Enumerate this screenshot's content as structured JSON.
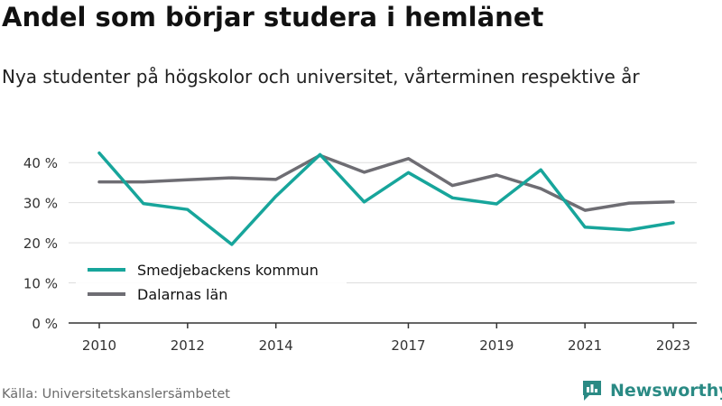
{
  "title": "Andel som börjar studera i hemlänet",
  "subtitle": "Nya studenter på högskolor och universitet, vårterminen respektive år",
  "source": "Källa: Universitetskanslersämbetet",
  "brand": "Newsworthy",
  "colors": {
    "series1": "#17a59b",
    "series2": "#6e6d73",
    "grid": "#dddddd",
    "axis": "#333333",
    "brand": "#2a8a84"
  },
  "chart_data": {
    "type": "line",
    "x": [
      2010,
      2011,
      2012,
      2013,
      2014,
      2015,
      2016,
      2017,
      2018,
      2019,
      2020,
      2021,
      2022,
      2023
    ],
    "xticks": [
      2010,
      2012,
      2014,
      2017,
      2019,
      2021,
      2023
    ],
    "yticks": [
      0,
      10,
      20,
      30,
      40
    ],
    "ytick_labels": [
      "0 %",
      "10 %",
      "20 %",
      "30 %",
      "40 %"
    ],
    "ylim": [
      0,
      45
    ],
    "grid": true,
    "legend_position": "bottom-left",
    "series": [
      {
        "name": "Smedjebackens kommun",
        "color": "#17a59b",
        "values": [
          42.4,
          29.8,
          28.3,
          19.6,
          31.6,
          42.0,
          30.2,
          37.5,
          31.2,
          29.7,
          38.2,
          23.9,
          23.2,
          25.0
        ]
      },
      {
        "name": "Dalarnas län",
        "color": "#6e6d73",
        "values": [
          35.2,
          35.2,
          35.7,
          36.2,
          35.8,
          41.8,
          37.6,
          41.0,
          34.3,
          36.9,
          33.5,
          28.1,
          29.9,
          30.2
        ]
      }
    ]
  }
}
